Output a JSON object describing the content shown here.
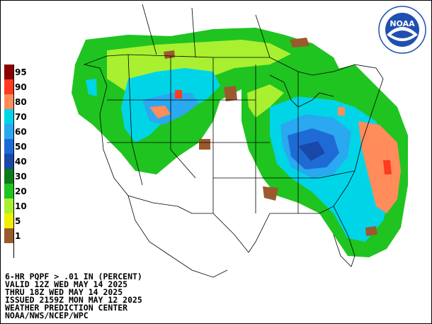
{
  "legend": {
    "items": [
      {
        "label": "95",
        "color": "#8b0000"
      },
      {
        "label": "90",
        "color": "#ff3a20"
      },
      {
        "label": "80",
        "color": "#ff8c5a"
      },
      {
        "label": "70",
        "color": "#00d5e8"
      },
      {
        "label": "60",
        "color": "#2aa8f0"
      },
      {
        "label": "50",
        "color": "#1f6bd6"
      },
      {
        "label": "40",
        "color": "#1a48a8"
      },
      {
        "label": "30",
        "color": "#0a7a1a"
      },
      {
        "label": "20",
        "color": "#1fc420"
      },
      {
        "label": "10",
        "color": "#a8f030"
      },
      {
        "label": "5",
        "color": "#f0f000"
      },
      {
        "label": "1",
        "color": "#9b5a2e"
      },
      {
        "label": "",
        "color": "#ffffff"
      }
    ]
  },
  "info": {
    "line1": "6-HR PQPF > .01 IN (PERCENT)",
    "line2": "VALID 12Z WED MAY 14 2025",
    "line3": "THRU 18Z WED MAY 14 2025",
    "line4": "ISSUED 2159Z MON MAY 12 2025",
    "line5": "WEATHER PREDICTION CENTER",
    "line6": "NOAA/NWS/NCEP/WPC"
  },
  "logo": {
    "text": "NOAA",
    "color": "#1f4fb0"
  }
}
